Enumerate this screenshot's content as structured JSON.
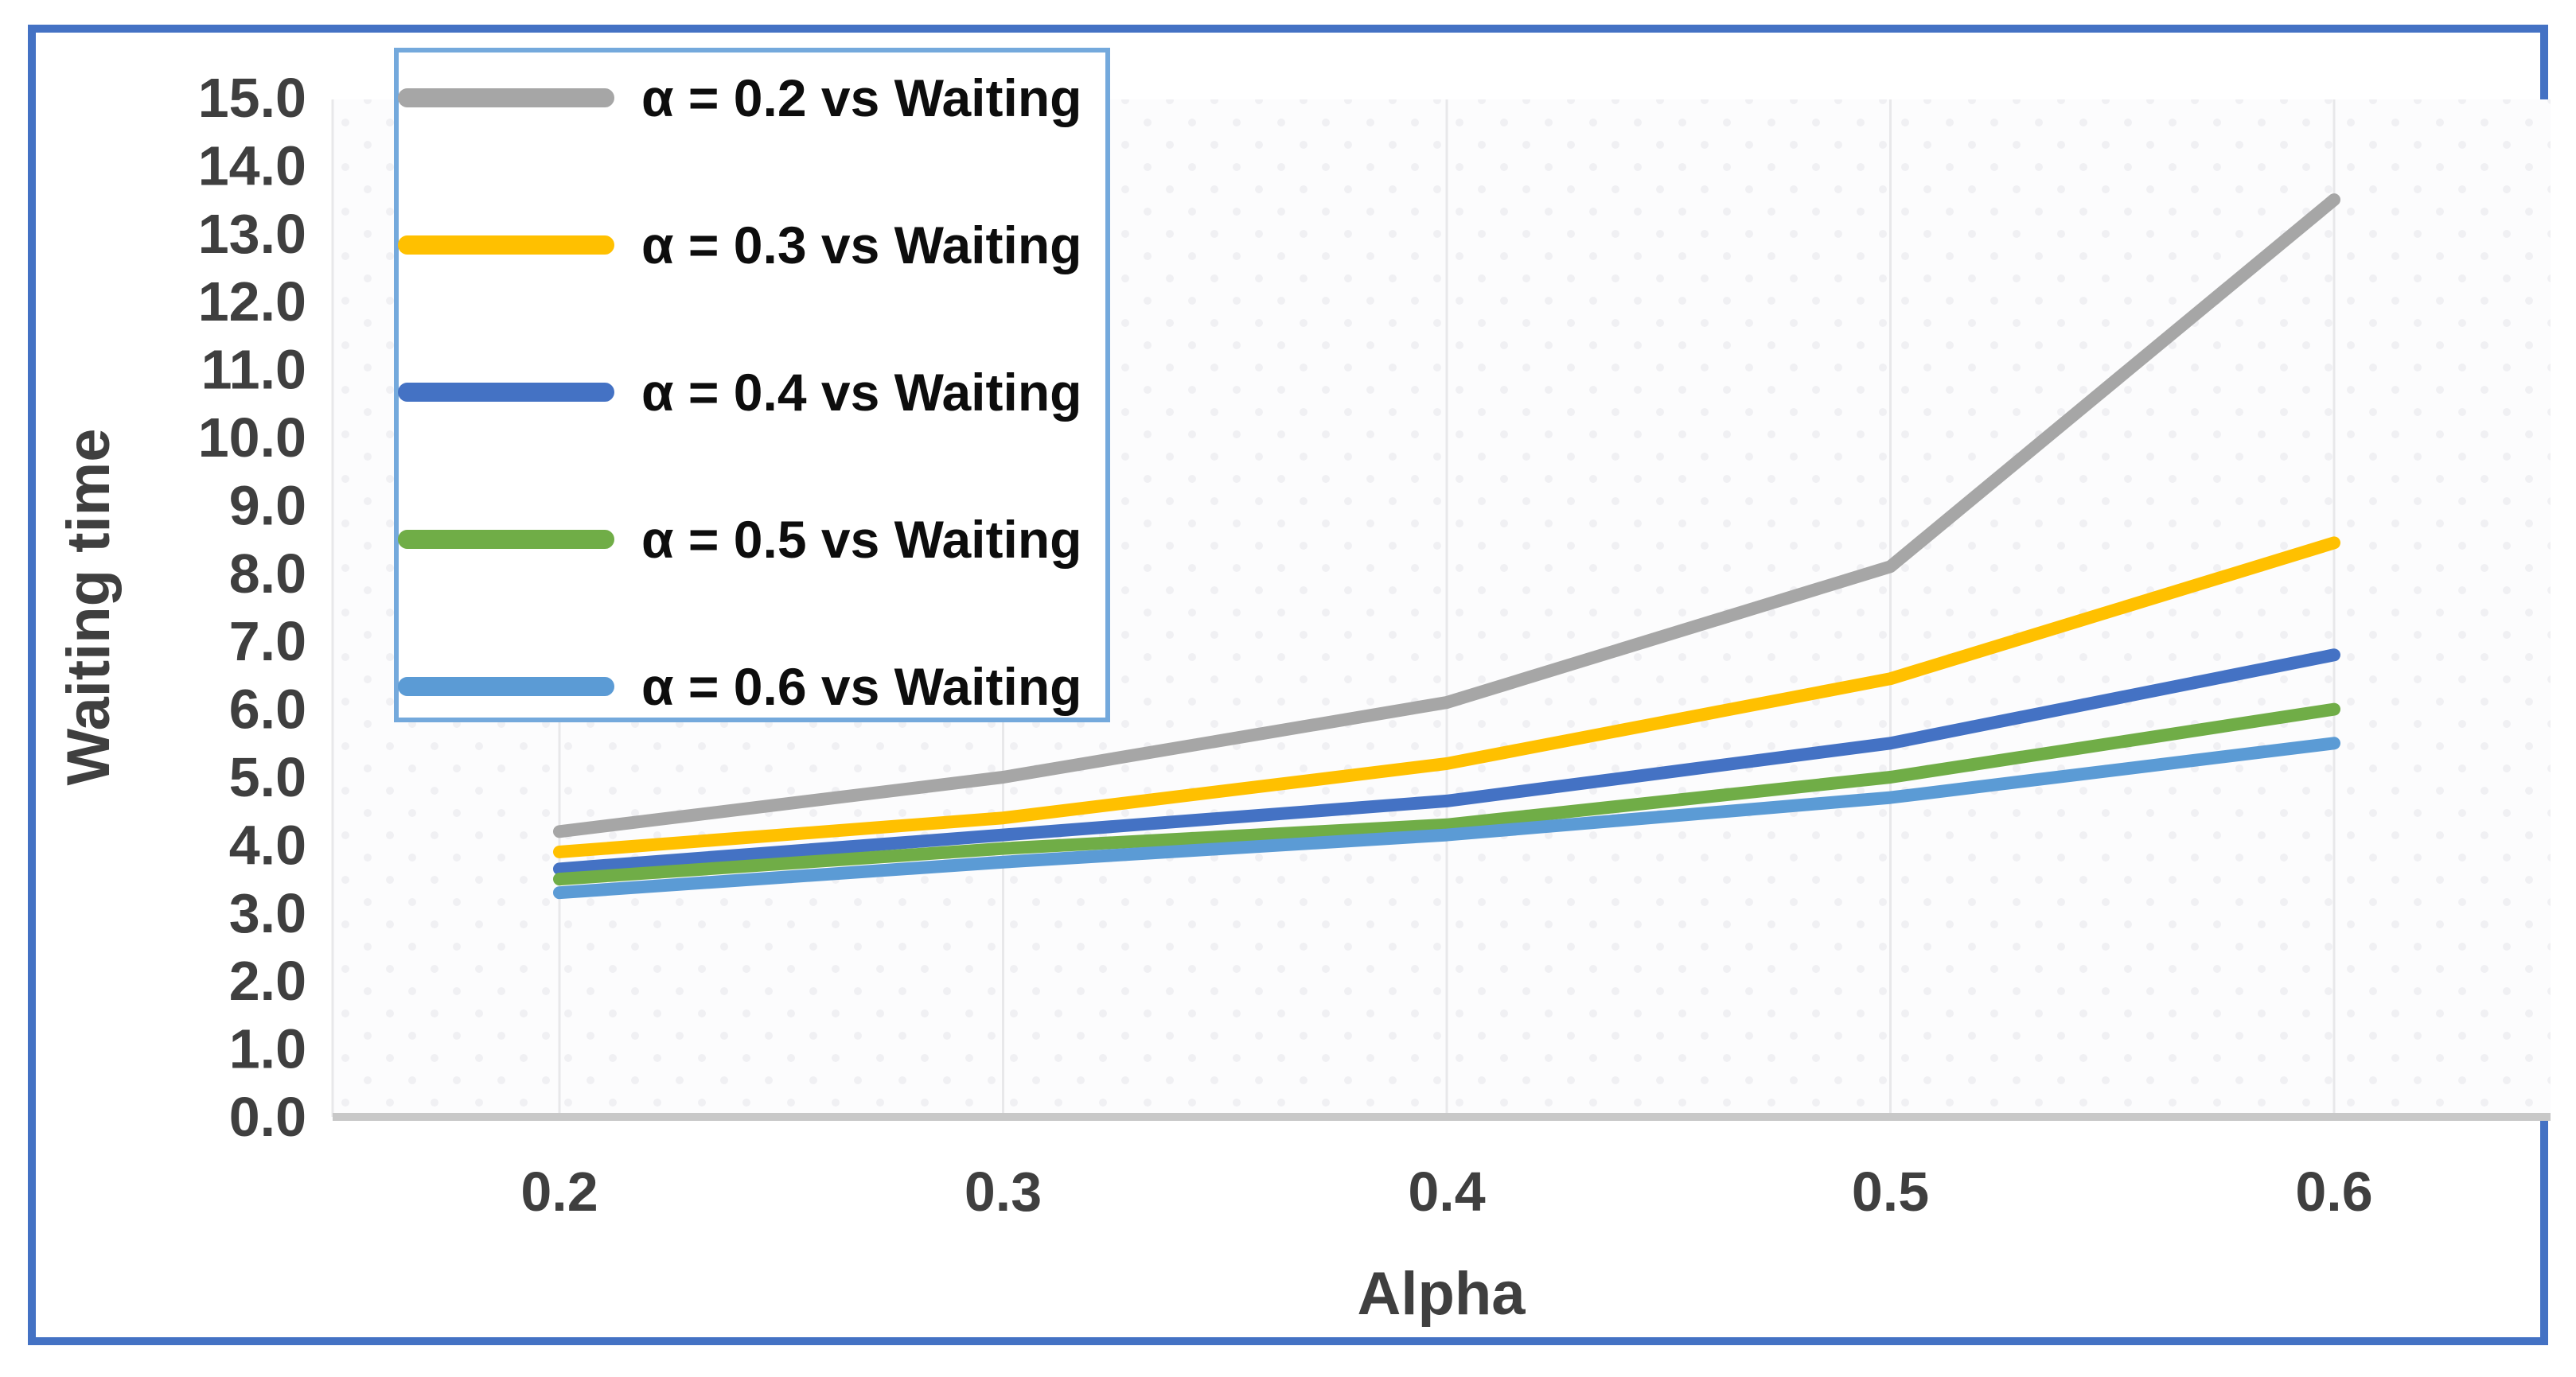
{
  "figure": {
    "frame_border_color": "#4472C4",
    "background_color": "#ffffff"
  },
  "chart_data": {
    "type": "line",
    "title": "",
    "xlabel": "Alpha",
    "ylabel": "Waiting time",
    "x_tick_labels": [
      "0.2",
      "0.3",
      "0.4",
      "0.5",
      "0.6"
    ],
    "x_values": [
      0.2,
      0.3,
      0.4,
      0.5,
      0.6
    ],
    "y_tick_labels": [
      "0.0",
      "1.0",
      "2.0",
      "3.0",
      "4.0",
      "5.0",
      "6.0",
      "7.0",
      "8.0",
      "9.0",
      "10.0",
      "11.0",
      "12.0",
      "13.0",
      "14.0",
      "15.0"
    ],
    "ylim": [
      0,
      15
    ],
    "grid": "vertical-only",
    "legend_position": "top-left-overlay",
    "legend_border_color": "#74A9DC",
    "axis_text_color": "#3f3f3f",
    "axis_line_color": "#c8c8c8",
    "gridline_color": "#e8e8ea",
    "plot_background_color": "#fcfcfd",
    "plot_dot_color": "#f0f0f3",
    "series": [
      {
        "name": "α = 0.2 vs Waiting",
        "color": "#A6A6A6",
        "values": [
          4.2,
          5.0,
          6.1,
          8.1,
          13.5
        ]
      },
      {
        "name": "α = 0.3 vs Waiting",
        "color": "#FFC000",
        "values": [
          3.9,
          4.4,
          5.2,
          6.45,
          8.45
        ]
      },
      {
        "name": "α = 0.4 vs Waiting",
        "color": "#4472C4",
        "values": [
          3.65,
          4.15,
          4.65,
          5.5,
          6.8
        ]
      },
      {
        "name": "α = 0.5 vs Waiting",
        "color": "#70AD47",
        "values": [
          3.5,
          3.95,
          4.3,
          5.0,
          6.0
        ]
      },
      {
        "name": "α = 0.6 vs Waiting",
        "color": "#5B9BD5",
        "values": [
          3.3,
          3.75,
          4.15,
          4.7,
          5.5
        ]
      }
    ]
  }
}
